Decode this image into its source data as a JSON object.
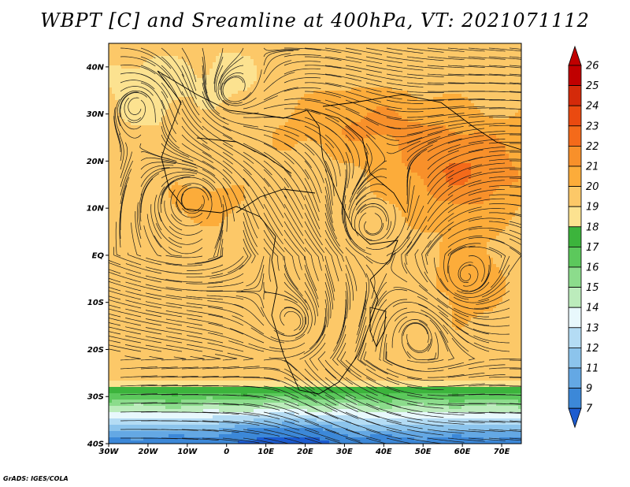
{
  "title": "WBPT [C] and Sreamline at 400hPa, VT: 2021071112",
  "credit": "GrADS: IGES/COLA",
  "map": {
    "lon_range": [
      -30,
      75
    ],
    "lat_range": [
      -40,
      45
    ],
    "lon_ticks": [
      "30W",
      "20W",
      "10W",
      "0",
      "10E",
      "20E",
      "30E",
      "40E",
      "50E",
      "60E",
      "70E"
    ],
    "lat_ticks": [
      "40N",
      "30N",
      "20N",
      "10N",
      "EQ",
      "10S",
      "20S",
      "30S",
      "40S"
    ]
  },
  "colorbar": {
    "labels": [
      "26",
      "25",
      "24",
      "23",
      "22",
      "21",
      "20",
      "19",
      "18",
      "17",
      "16",
      "15",
      "14",
      "13",
      "12",
      "11",
      "9",
      "7"
    ],
    "colors": [
      "#c00000",
      "#d42a0a",
      "#ea4a10",
      "#f46a1a",
      "#f8902a",
      "#fcac3a",
      "#fcc868",
      "#fce290",
      "#3cb43c",
      "#5cc85c",
      "#8cdc8c",
      "#bcecbc",
      "#e8f8fc",
      "#b4dcf4",
      "#8cc4ec",
      "#64a8e4",
      "#3c88d8",
      "#1c5cd0"
    ]
  }
}
